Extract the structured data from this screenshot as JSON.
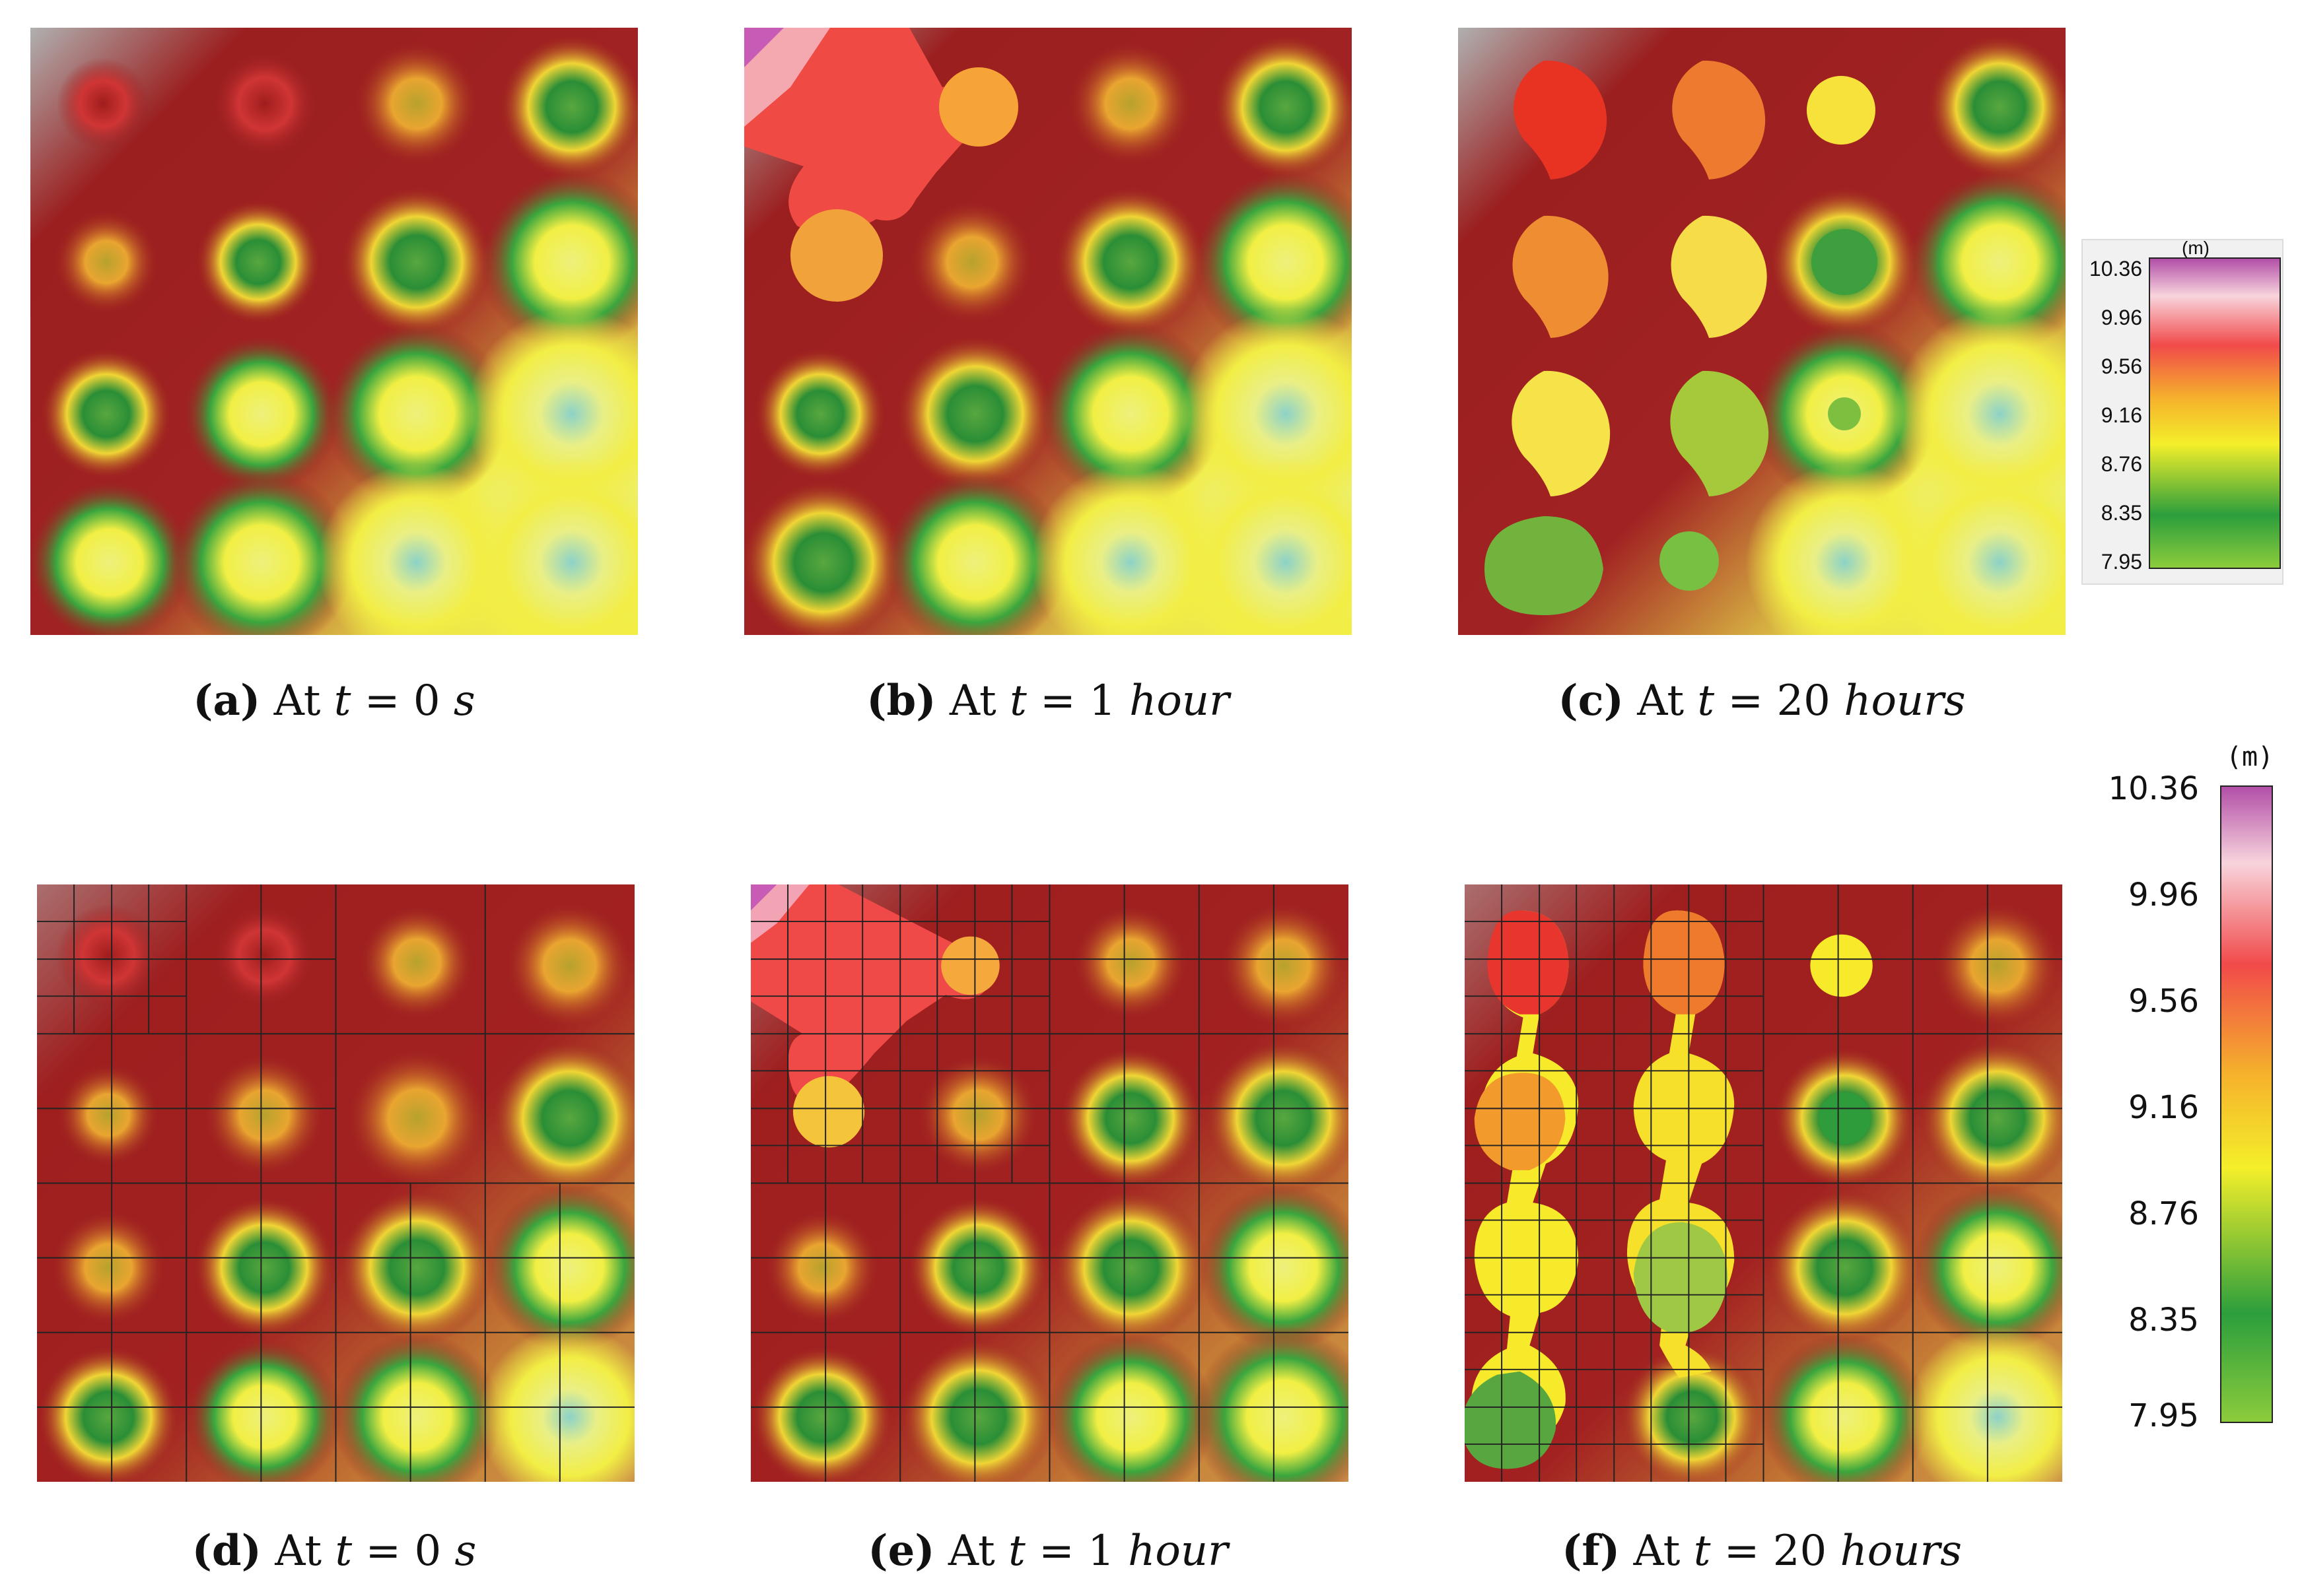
{
  "figure": {
    "captions": [
      {
        "label": "(a)",
        "prefix": "At",
        "var": "t",
        "eq": "= 0",
        "unit": "s"
      },
      {
        "label": "(b)",
        "prefix": "At",
        "var": "t",
        "eq": "= 1",
        "unit": "hour"
      },
      {
        "label": "(c)",
        "prefix": "At",
        "var": "t",
        "eq": "= 20",
        "unit": "hours"
      },
      {
        "label": "(d)",
        "prefix": "At",
        "var": "t",
        "eq": "= 0",
        "unit": "s"
      },
      {
        "label": "(e)",
        "prefix": "At",
        "var": "t",
        "eq": "= 1",
        "unit": "hour"
      },
      {
        "label": "(f)",
        "prefix": "At",
        "var": "t",
        "eq": "= 20",
        "unit": "hours"
      }
    ],
    "colorbar_top": {
      "unit": "(m)",
      "ticks": [
        "10.36",
        "9.96",
        "9.56",
        "9.16",
        "8.76",
        "8.35",
        "7.95"
      ]
    },
    "colorbar_bottom": {
      "unit": "(m)",
      "ticks": [
        "10.36",
        "9.96",
        "9.56",
        "9.16",
        "8.76",
        "8.35",
        "7.95"
      ]
    },
    "colors": {
      "background_high": "#9b1f1f",
      "gray_corner": "#b5b5b5",
      "scale": [
        "#b24fa8",
        "#f8d4dc",
        "#f14a4a",
        "#f5b02c",
        "#f4ef2a",
        "#2b9e3c",
        "#8ccc3c"
      ]
    }
  }
}
